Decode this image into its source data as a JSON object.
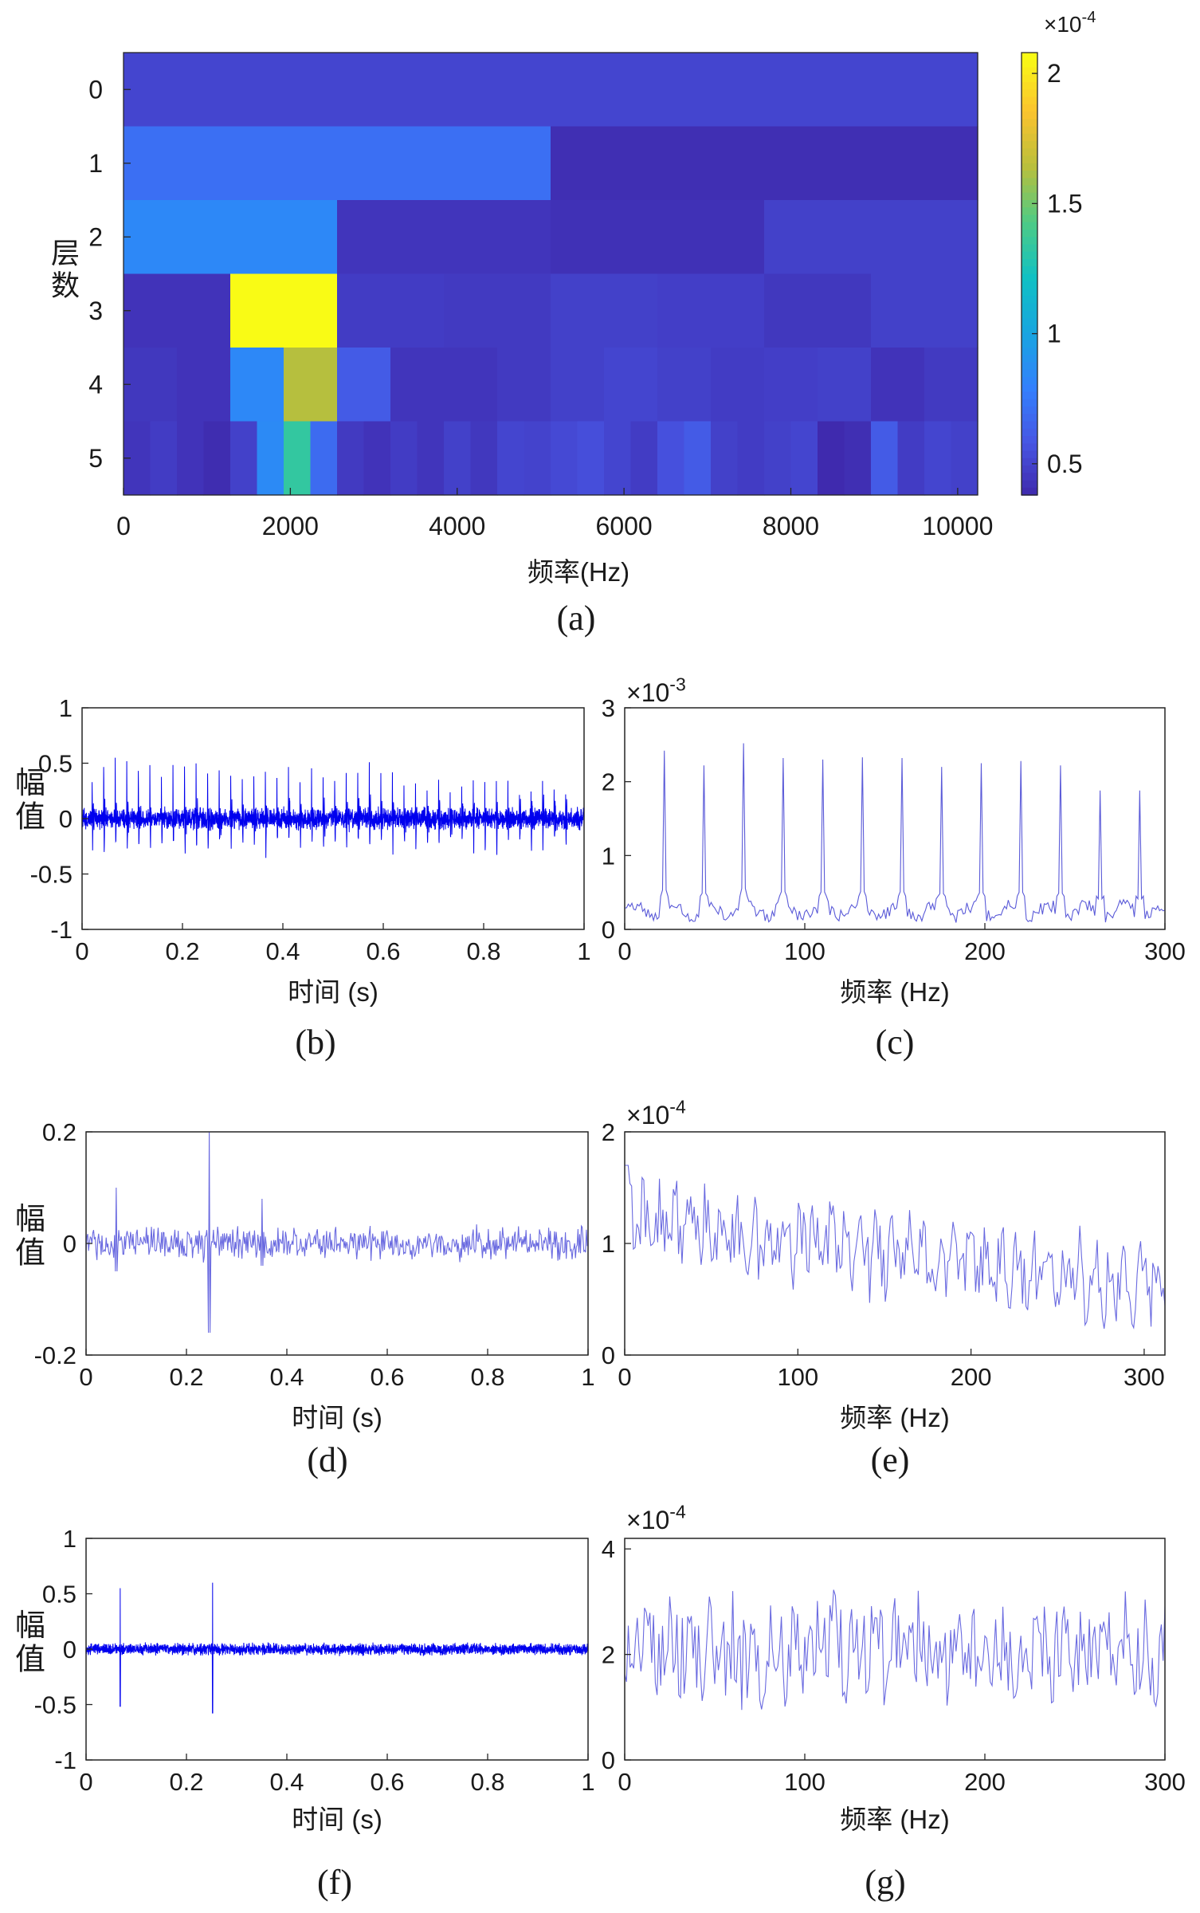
{
  "chart_data": [
    {
      "id": "a",
      "type": "heatmap",
      "caption": "(a)",
      "xlabel": "频率(Hz)",
      "ylabel": "层数",
      "xlim": [
        0,
        10240
      ],
      "xticks": [
        "0",
        "2000",
        "4000",
        "6000",
        "8000",
        "10000"
      ],
      "ytick_labels": [
        "0",
        "1",
        "2",
        "3",
        "4",
        "5"
      ],
      "colorbar": {
        "ticks": [
          "0.5",
          "1",
          "1.5",
          "2"
        ],
        "range": [
          0.38,
          2.08
        ],
        "exponent_text": "×10",
        "exponent_sup": "-4",
        "colors": [
          "#3e26a8",
          "#4755e3",
          "#3380fd",
          "#17a5e0",
          "#10c1c3",
          "#4ecb85",
          "#b9bf3c",
          "#fbc32e",
          "#f9fb15"
        ]
      },
      "levels": [
        {
          "level": 0,
          "values": [
            0.52
          ]
        },
        {
          "level": 1,
          "values": [
            0.72,
            0.42
          ]
        },
        {
          "level": 2,
          "values": [
            0.85,
            0.45,
            0.43,
            0.5
          ]
        },
        {
          "level": 3,
          "values": [
            0.44,
            2.08,
            0.48,
            0.47,
            0.5,
            0.49,
            0.46,
            0.5
          ]
        },
        {
          "level": 4,
          "values": [
            0.46,
            0.44,
            0.85,
            1.65,
            0.62,
            0.45,
            0.45,
            0.47,
            0.5,
            0.52,
            0.5,
            0.48,
            0.49,
            0.5,
            0.44,
            0.47
          ]
        },
        {
          "level": 5,
          "values": [
            0.45,
            0.48,
            0.44,
            0.41,
            0.5,
            0.86,
            1.35,
            0.7,
            0.47,
            0.44,
            0.48,
            0.45,
            0.5,
            0.46,
            0.52,
            0.51,
            0.54,
            0.56,
            0.52,
            0.48,
            0.57,
            0.62,
            0.5,
            0.48,
            0.5,
            0.52,
            0.4,
            0.42,
            0.62,
            0.48,
            0.52,
            0.5
          ]
        }
      ]
    },
    {
      "id": "b",
      "type": "line",
      "caption": "(b)",
      "xlabel": "时间 (s)",
      "ylabel": "幅值",
      "xlim": [
        0,
        1
      ],
      "ylim": [
        -1,
        1
      ],
      "xticks": [
        "0",
        "0.2",
        "0.4",
        "0.6",
        "0.8",
        "1"
      ],
      "yticks": [
        "-1",
        "-0.5",
        "0",
        "0.5",
        "1"
      ],
      "color": "#0000ee",
      "series": [
        {
          "samples": 3000,
          "noise_amplitude": 0.07,
          "impulse_times": [
            0.02,
            0.043,
            0.066,
            0.089,
            0.112,
            0.135,
            0.158,
            0.181,
            0.204,
            0.227,
            0.25,
            0.273,
            0.296,
            0.319,
            0.342,
            0.365,
            0.388,
            0.411,
            0.434,
            0.457,
            0.48,
            0.503,
            0.526,
            0.549,
            0.572,
            0.595,
            0.618,
            0.641,
            0.664,
            0.687,
            0.71,
            0.733,
            0.756,
            0.779,
            0.802,
            0.825,
            0.848,
            0.871,
            0.894,
            0.917,
            0.94,
            0.963
          ],
          "impulse_amplitude": 0.45
        }
      ]
    },
    {
      "id": "c",
      "type": "line",
      "caption": "(c)",
      "xlabel": "频率 (Hz)",
      "ylabel": "",
      "xlim": [
        0,
        300
      ],
      "ylim": [
        0,
        3
      ],
      "xticks": [
        "0",
        "100",
        "200",
        "300"
      ],
      "yticks": [
        "0",
        "1",
        "2",
        "3"
      ],
      "exponent_text": "×10",
      "exponent_sup": "-3",
      "color": "#5a5ad8",
      "series": [
        {
          "samples": 301,
          "baseline": 0.25,
          "noise": 0.18,
          "peaks": [
            [
              22,
              2.42
            ],
            [
              44,
              2.22
            ],
            [
              66,
              2.52
            ],
            [
              88,
              2.32
            ],
            [
              110,
              2.3
            ],
            [
              132,
              2.33
            ],
            [
              154,
              2.32
            ],
            [
              176,
              2.2
            ],
            [
              198,
              2.25
            ],
            [
              220,
              2.28
            ],
            [
              242,
              2.22
            ],
            [
              264,
              1.88
            ],
            [
              286,
              1.88
            ]
          ]
        }
      ]
    },
    {
      "id": "d",
      "type": "line",
      "caption": "(d)",
      "xlabel": "时间 (s)",
      "ylabel": "幅值",
      "xlim": [
        0,
        1
      ],
      "ylim": [
        -0.2,
        0.2
      ],
      "xticks": [
        "0",
        "0.2",
        "0.4",
        "0.6",
        "0.8",
        "1"
      ],
      "yticks": [
        "-0.2",
        "0",
        "0.2"
      ],
      "color": "#6a6ae0",
      "series": [
        {
          "samples": 600,
          "noise_amplitude": 0.025,
          "spikes": [
            [
              0.245,
              0.21,
              -0.16
            ],
            [
              0.06,
              0.1,
              -0.05
            ],
            [
              0.35,
              0.08,
              -0.04
            ]
          ]
        }
      ]
    },
    {
      "id": "e",
      "type": "line",
      "caption": "(e)",
      "xlabel": "频率 (Hz)",
      "ylabel": "",
      "xlim": [
        0,
        312
      ],
      "ylim": [
        0,
        2
      ],
      "xticks": [
        "0",
        "100",
        "200",
        "300"
      ],
      "yticks": [
        "0",
        "1",
        "2"
      ],
      "exponent_text": "×10",
      "exponent_sup": "-4",
      "color": "#6a6ae0",
      "series": [
        {
          "samples": 312,
          "start": 1.2,
          "end": 0.6,
          "noise": 0.3
        }
      ]
    },
    {
      "id": "f",
      "type": "line",
      "caption": "(f)",
      "xlabel": "时间 (s)",
      "ylabel": "幅值",
      "xlim": [
        0,
        1
      ],
      "ylim": [
        -1,
        1
      ],
      "xticks": [
        "0",
        "0.2",
        "0.4",
        "0.6",
        "0.8",
        "1"
      ],
      "yticks": [
        "-1",
        "-0.5",
        "0",
        "0.5",
        "1"
      ],
      "color": "#0000ee",
      "series": [
        {
          "samples": 3000,
          "noise_amplitude": 0.045,
          "spikes": [
            [
              0.068,
              0.55,
              -0.52
            ],
            [
              0.252,
              0.6,
              -0.58
            ]
          ]
        }
      ]
    },
    {
      "id": "g",
      "type": "line",
      "caption": "(g)",
      "xlabel": "频率 (Hz)",
      "ylabel": "",
      "xlim": [
        0,
        300
      ],
      "ylim": [
        0,
        4.2
      ],
      "xticks": [
        "0",
        "100",
        "200",
        "300"
      ],
      "yticks": [
        "0",
        "2",
        "4"
      ],
      "exponent_text": "×10",
      "exponent_sup": "-4",
      "color": "#6a6ae0",
      "series": [
        {
          "samples": 301,
          "mean": 2.1,
          "noise": 0.9
        }
      ]
    }
  ]
}
